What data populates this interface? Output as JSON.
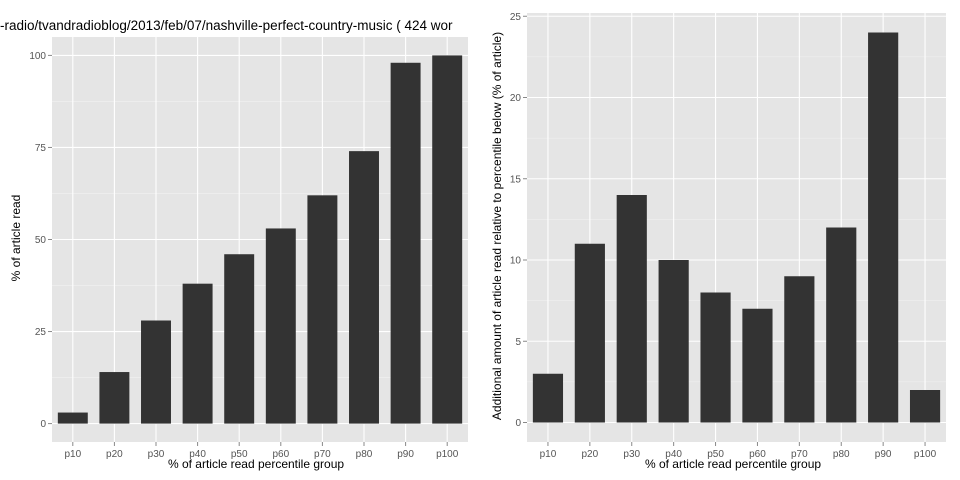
{
  "chart_data": [
    {
      "type": "bar",
      "title": "-radio/tvandradioblog/2013/feb/07/nashville-perfect-country-music ( 424 wor",
      "xlabel": "% of article read percentile group",
      "ylabel": "% of article read",
      "categories": [
        "p10",
        "p20",
        "p30",
        "p40",
        "p50",
        "p60",
        "p70",
        "p80",
        "p90",
        "p100"
      ],
      "values": [
        3,
        14,
        28,
        38,
        46,
        53,
        62,
        74,
        98,
        100
      ],
      "ylim": [
        -5,
        105
      ],
      "yticks": [
        0,
        25,
        50,
        75,
        100
      ],
      "bar_color": "#333333",
      "panel_color": "#e5e5e5",
      "grid": true
    },
    {
      "type": "bar",
      "title": "",
      "xlabel": "% of article read percentile group",
      "ylabel": "Additional amount of article read relative to percentile below (% of article)",
      "categories": [
        "p10",
        "p20",
        "p30",
        "p40",
        "p50",
        "p60",
        "p70",
        "p80",
        "p90",
        "p100"
      ],
      "values": [
        3,
        11,
        14,
        10,
        8,
        7,
        9,
        12,
        24,
        2
      ],
      "ylim": [
        -1.2,
        25.2
      ],
      "yticks": [
        0,
        5,
        10,
        15,
        20,
        25
      ],
      "bar_color": "#333333",
      "panel_color": "#e5e5e5",
      "grid": true
    }
  ]
}
